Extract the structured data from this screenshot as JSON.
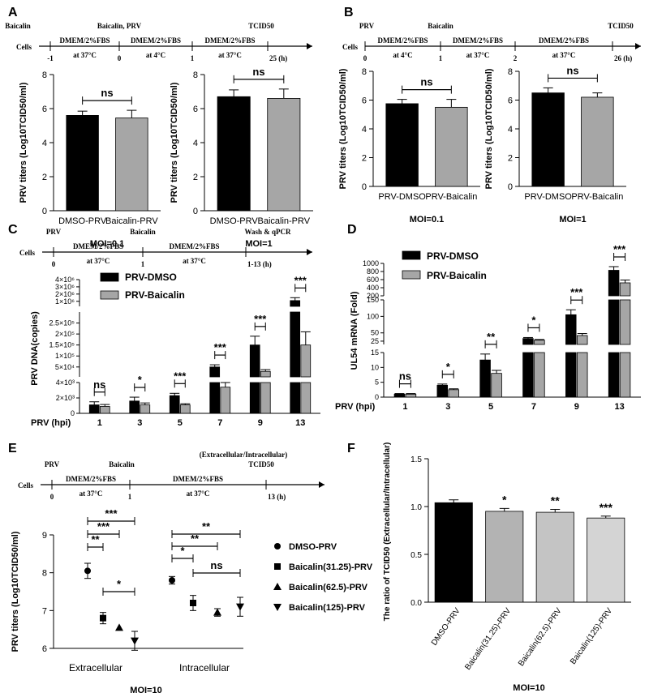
{
  "colors": {
    "black": "#000000",
    "gray": "#a6a6a6",
    "lightgray": "#d4d4d4",
    "white": "#ffffff"
  },
  "panelA": {
    "letter": "A",
    "timeline": {
      "top": [
        "Baicalin",
        "Baicalin, PRV",
        "TCID50"
      ],
      "cells": "Cells",
      "segments": [
        "DMEM/2%FBS",
        "DMEM/2%FBS",
        "DMEM/2%FBS"
      ],
      "temps": [
        "at 37°C",
        "at 4°C",
        "at 37°C"
      ],
      "ticks": [
        "-1",
        "0",
        "1",
        "25 (h)"
      ]
    },
    "charts": [
      {
        "moi": "MOI=0.1",
        "ns": "ns",
        "ylabel": "PRV titers (Log10TCID50/ml)"
      },
      {
        "moi": "MOI=1",
        "ns": "ns",
        "ylabel": "PRV titers (Log10TCID50/ml)"
      }
    ]
  },
  "panelB": {
    "letter": "B",
    "timeline": {
      "top": [
        "PRV",
        "Baicalin",
        "TCID50"
      ],
      "cells": "Cells",
      "segments": [
        "DMEM/2%FBS",
        "DMEM/2%FBS",
        "DMEM/2%FBS"
      ],
      "temps": [
        "at 4°C",
        "at 37°C",
        "at 37°C"
      ],
      "ticks": [
        "0",
        "1",
        "2",
        "26 (h)"
      ]
    },
    "charts": [
      {
        "moi": "MOI=0.1",
        "ns": "ns",
        "ylabel": "PRV titers (Log10TCID50/ml)"
      },
      {
        "moi": "MOI=1",
        "ns": "ns",
        "ylabel": "PRV titers (Log10TCID50/ml)"
      }
    ]
  },
  "panelC": {
    "letter": "C",
    "timeline": {
      "top": [
        "PRV",
        "Baicalin",
        "Wash & qPCR"
      ],
      "cells": "Cells",
      "segments": [
        "DMEM/2%FBS",
        "DMEM/2%FBS"
      ],
      "temps": [
        "at 37°C",
        "at 37°C"
      ],
      "ticks": [
        "0",
        "1",
        "1-13 (h)"
      ]
    },
    "legend": [
      "PRV-DMSO",
      "PRV-Baicalin"
    ],
    "ylabel": "PRV DNA(copies)",
    "xprefix": "PRV (hpi)",
    "sig": [
      "ns",
      "*",
      "***",
      "***",
      "***",
      "***"
    ]
  },
  "panelD": {
    "letter": "D",
    "legend": [
      "PRV-DMSO",
      "PRV-Baicalin"
    ],
    "ylabel": "UL54 mRNA (Fold)",
    "xprefix": "PRV (hpi)",
    "sig": [
      "ns",
      "*",
      "**",
      "*",
      "***",
      "***"
    ]
  },
  "panelE": {
    "letter": "E",
    "timeline": {
      "top": [
        "PRV",
        "Baicalin",
        "TCID50",
        "(Extracellular/Intracellular)"
      ],
      "cells": "Cells",
      "segments": [
        "DMEM/2%FBS",
        "DMEM/2%FBS"
      ],
      "temps": [
        "at 37°C",
        "at 37°C"
      ],
      "ticks": [
        "0",
        "1",
        "13 (h)"
      ]
    },
    "ylabel": "PRV titers (Log10TCID50/ml)",
    "moi": "MOI=10",
    "legend": [
      "DMSO-PRV",
      "Baicalin(31.25)-PRV",
      "Baicalin(62.5)-PRV",
      "Baicalin(125)-PRV"
    ],
    "sig_extra": [
      "***",
      "***",
      "**",
      "*"
    ],
    "sig_intra": [
      "**",
      "**",
      "*",
      "ns"
    ]
  },
  "panelF": {
    "letter": "F",
    "ylabel": "The ratio of TCID50 (Extracellular/Intracellular)",
    "moi": "MOI=10",
    "sig": [
      "",
      "*",
      "**",
      "***"
    ]
  },
  "chart_data": [
    {
      "id": "A1",
      "type": "bar",
      "categories": [
        "DMSO-PRV",
        "Baicalin-PRV"
      ],
      "values": [
        5.6,
        5.45
      ],
      "errors": [
        0.25,
        0.45
      ],
      "ylim": [
        0,
        8
      ],
      "yticks": [
        0,
        2,
        4,
        6,
        8
      ],
      "xlabel": "MOI=0.1",
      "ylabel": "PRV titers (Log10TCID50/ml)"
    },
    {
      "id": "A2",
      "type": "bar",
      "categories": [
        "DMSO-PRV",
        "Baicalin-PRV"
      ],
      "values": [
        6.7,
        6.6
      ],
      "errors": [
        0.4,
        0.55
      ],
      "ylim": [
        0,
        8
      ],
      "yticks": [
        0,
        2,
        4,
        6,
        8
      ],
      "xlabel": "MOI=1",
      "ylabel": "PRV titers (Log10TCID50/ml)"
    },
    {
      "id": "B1",
      "type": "bar",
      "categories": [
        "PRV-DMSO",
        "PRV-Baicalin"
      ],
      "values": [
        5.75,
        5.5
      ],
      "errors": [
        0.3,
        0.55
      ],
      "ylim": [
        0,
        8
      ],
      "yticks": [
        0,
        2,
        4,
        6,
        8
      ],
      "xlabel": "MOI=0.1",
      "ylabel": "PRV titers (Log10TCID50/ml)"
    },
    {
      "id": "B2",
      "type": "bar",
      "categories": [
        "PRV-DMSO",
        "PRV-Baicalin"
      ],
      "values": [
        6.5,
        6.2
      ],
      "errors": [
        0.35,
        0.3
      ],
      "ylim": [
        0,
        8
      ],
      "yticks": [
        0,
        2,
        4,
        6,
        8
      ],
      "xlabel": "MOI=1",
      "ylabel": "PRV titers (Log10TCID50/ml)"
    },
    {
      "id": "C",
      "type": "bar",
      "categories": [
        "1",
        "3",
        "5",
        "7",
        "9",
        "13"
      ],
      "xlabel": "PRV (hpi)",
      "ylabel": "PRV DNA(copies)",
      "series": [
        {
          "name": "PRV-DMSO",
          "values": [
            1100,
            1600,
            2300,
            50000,
            150000,
            1100000
          ],
          "errors": [
            400,
            500,
            300,
            10000,
            40000,
            400000
          ]
        },
        {
          "name": "PRV-Baicalin",
          "values": [
            900,
            1100,
            1100,
            3400,
            30000,
            150000
          ],
          "errors": [
            250,
            250,
            150,
            600,
            8000,
            60000
          ]
        }
      ],
      "segments": [
        {
          "range": [
            0,
            4000
          ],
          "ticks": [
            0,
            2000,
            4000
          ],
          "tick_labels": [
            "0",
            "2×10³",
            "4×10³"
          ]
        },
        {
          "range": [
            5000,
            300000
          ],
          "ticks": [
            50000,
            100000,
            150000,
            200000,
            250000
          ],
          "tick_labels": [
            "5×10⁴",
            "1×10⁵",
            "1.5×10⁵",
            "2×10⁵",
            "2.5×10⁵"
          ]
        },
        {
          "range": [
            300000,
            4000000
          ],
          "ticks": [
            1000000,
            2000000,
            3000000,
            4000000
          ],
          "tick_labels": [
            "1×10⁶",
            "2×10⁶",
            "3×10⁶",
            "4×10⁶"
          ]
        }
      ]
    },
    {
      "id": "D",
      "type": "bar",
      "categories": [
        "1",
        "3",
        "5",
        "7",
        "9",
        "13"
      ],
      "xlabel": "PRV (hpi)",
      "ylabel": "UL54 mRNA (Fold)",
      "series": [
        {
          "name": "PRV-DMSO",
          "values": [
            1,
            4,
            12.5,
            33,
            105,
            830
          ],
          "errors": [
            0.2,
            0.4,
            2,
            3,
            15,
            90
          ]
        },
        {
          "name": "PRV-Baicalin",
          "values": [
            1,
            2.5,
            8,
            28,
            42,
            520
          ],
          "errors": [
            0.2,
            0.3,
            1,
            2,
            6,
            70
          ]
        }
      ],
      "segments": [
        {
          "range": [
            0,
            15
          ],
          "ticks": [
            0,
            5,
            10,
            15
          ],
          "tick_labels": [
            "0",
            "5",
            "10",
            "15"
          ]
        },
        {
          "range": [
            15,
            150
          ],
          "ticks": [
            25,
            50,
            100,
            150
          ],
          "tick_labels": [
            "25",
            "50",
            "100",
            "150"
          ]
        },
        {
          "range": [
            200,
            1000
          ],
          "ticks": [
            200,
            400,
            600,
            800,
            1000
          ],
          "tick_labels": [
            "200",
            "400",
            "600",
            "800",
            "1000"
          ]
        }
      ]
    },
    {
      "id": "E",
      "type": "scatter",
      "categories": [
        "Extracellular",
        "Intracellular"
      ],
      "ylim": [
        6,
        9
      ],
      "yticks": [
        6,
        7,
        8,
        9
      ],
      "ylabel": "PRV titers (Log10TCID50/ml)",
      "xlabel": "MOI=10",
      "series": [
        {
          "name": "DMSO-PRV",
          "marker": "circle",
          "values": [
            8.05,
            7.8
          ],
          "errors": [
            0.2,
            0.1
          ]
        },
        {
          "name": "Baicalin(31.25)-PRV",
          "marker": "square",
          "values": [
            6.8,
            7.2
          ],
          "errors": [
            0.15,
            0.2
          ]
        },
        {
          "name": "Baicalin(62.5)-PRV",
          "marker": "triangle",
          "values": [
            6.55,
            6.95
          ],
          "errors": [
            0,
            0.1
          ]
        },
        {
          "name": "Baicalin(125)-PRV",
          "marker": "triangle-down",
          "values": [
            6.2,
            7.1
          ],
          "errors": [
            0.25,
            0.25
          ]
        }
      ]
    },
    {
      "id": "F",
      "type": "bar",
      "categories": [
        "DMSO-PRV",
        "Baicalin(31.25)-PRV",
        "Baicalin(62.5)-PRV",
        "Baicalin(125)-PRV"
      ],
      "values": [
        1.04,
        0.95,
        0.94,
        0.88
      ],
      "errors": [
        0.03,
        0.03,
        0.03,
        0.02
      ],
      "ylim": [
        0,
        1.5
      ],
      "yticks": [
        0,
        0.5,
        1.0,
        1.5
      ],
      "ytick_labels": [
        "0.0",
        "0.5",
        "1.0",
        "1.5"
      ],
      "xlabel": "MOI=10",
      "ylabel": "The ratio of TCID50 (Extracellular/Intracellular)"
    }
  ]
}
